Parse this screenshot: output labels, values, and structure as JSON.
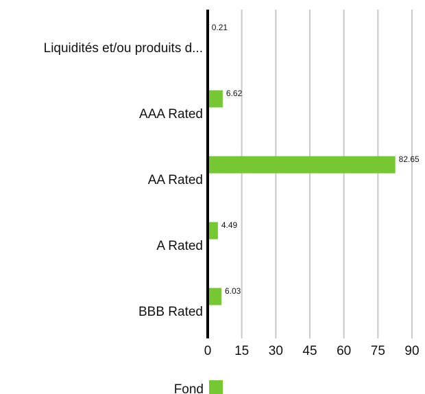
{
  "chart_data": {
    "type": "bar",
    "orientation": "horizontal",
    "categories": [
      "Liquidités et/ou produits d...",
      "AAA Rated",
      "AA Rated",
      "A Rated",
      "BBB Rated"
    ],
    "series": [
      {
        "name": "Fond",
        "values": [
          0.21,
          6.62,
          82.65,
          4.49,
          6.03
        ],
        "color": "#76c832"
      }
    ],
    "data_labels": [
      "0.21",
      "6.62",
      "82.65",
      "4.49",
      "6.03"
    ],
    "xlim": [
      0,
      90
    ],
    "x_ticks": [
      0,
      15,
      30,
      45,
      60,
      75,
      90
    ],
    "x_tick_labels": [
      "0",
      "15",
      "30",
      "45",
      "60",
      "75",
      "90"
    ],
    "grid": "vertical",
    "grid_color": "#c8c8c8",
    "axis_color": "#000000",
    "legend": {
      "position": "bottom-left",
      "entries": [
        "Fond"
      ]
    }
  }
}
